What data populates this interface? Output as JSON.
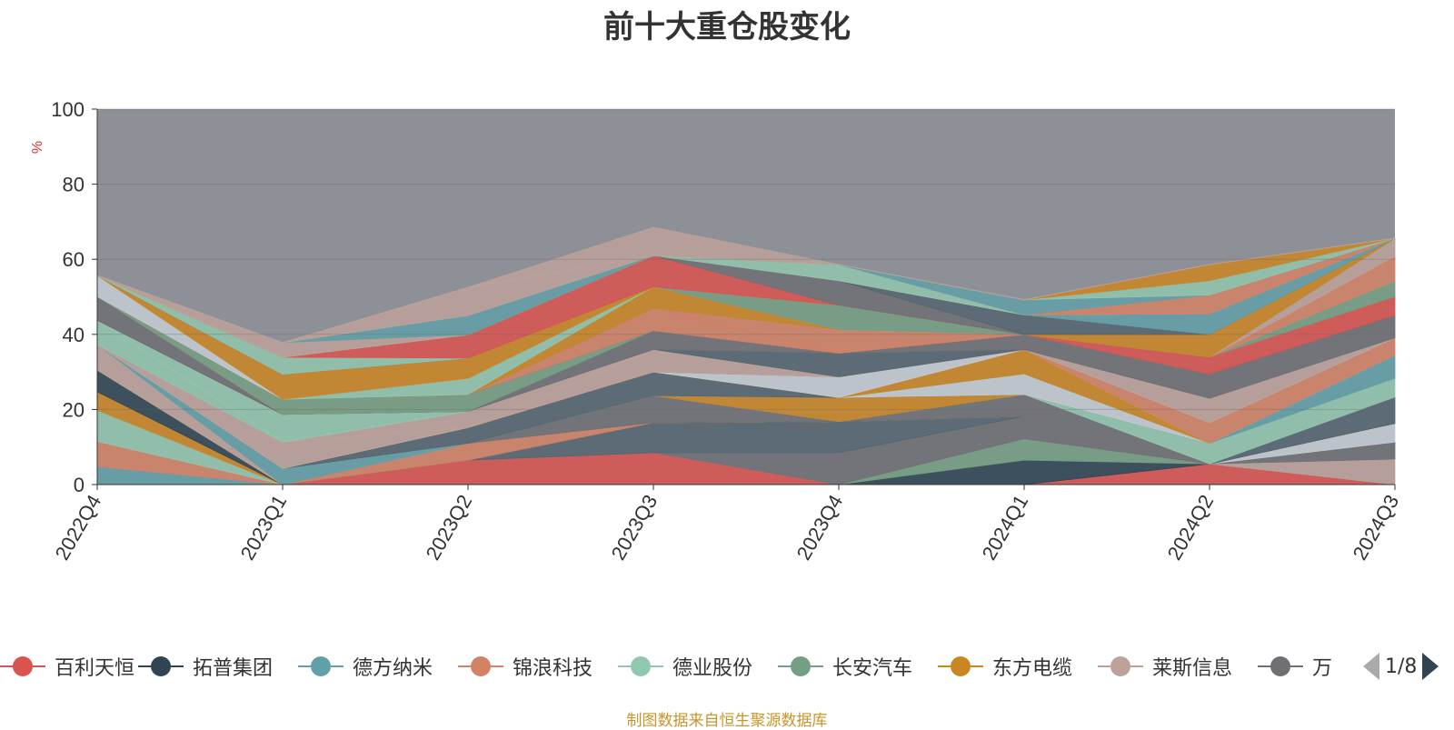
{
  "title": "前十大重仓股变化",
  "source_note": "制图数据来自恒生聚源数据库",
  "legend_pager": {
    "page_text": "1/8"
  },
  "chart_data": {
    "type": "area",
    "stacked": true,
    "ylabel": "%",
    "ylim": [
      0,
      100
    ],
    "yticks": [
      0,
      20,
      40,
      60,
      80,
      100
    ],
    "categories": [
      "2022Q4",
      "2023Q1",
      "2023Q2",
      "2023Q3",
      "2023Q4",
      "2024Q1",
      "2024Q2",
      "2024Q3"
    ],
    "grid": true,
    "legend_position": "bottom",
    "series": [
      {
        "name": "百利天恒",
        "color": "#d9534f",
        "values": [
          0,
          0,
          6.5,
          8.5,
          0,
          0,
          5.5,
          0
        ]
      },
      {
        "name": "拓普集团",
        "color": "#2f4554",
        "values": [
          0,
          0,
          0,
          0,
          0,
          6.5,
          0,
          0
        ]
      },
      {
        "name": "德方纳米",
        "color": "#61a0a8",
        "values": [
          0,
          0,
          0,
          0,
          0,
          0,
          0,
          0
        ]
      },
      {
        "name": "锦浪科技",
        "color": "#d48265",
        "values": [
          0,
          0,
          0,
          0,
          0,
          0,
          0,
          0
        ]
      },
      {
        "name": "德业股份",
        "color": "#91c7ae",
        "values": [
          0,
          0,
          0,
          0,
          0,
          0,
          0,
          0
        ]
      },
      {
        "name": "长安汽车",
        "color": "#749f83",
        "values": [
          0,
          0,
          0,
          0,
          0,
          5.7,
          0,
          0
        ]
      },
      {
        "name": "东方电缆",
        "color": "#ca8622",
        "values": [
          0,
          0,
          0,
          0,
          0,
          0,
          0,
          0
        ]
      },
      {
        "name": "莱斯信息",
        "color": "#bda29a",
        "values": [
          0,
          0,
          0,
          0,
          0,
          0,
          0,
          6.8
        ]
      },
      {
        "name": "",
        "color": "#6e7074",
        "values": [
          0,
          0,
          0,
          0,
          8.5,
          6.0,
          0,
          4.5
        ]
      },
      {
        "values": [
          0,
          0,
          0,
          8.0,
          8.3,
          0,
          0,
          0
        ],
        "color": "#546570"
      },
      {
        "values": [
          0,
          0,
          0,
          0,
          0,
          0,
          0,
          5.0
        ],
        "color": "#c4ccd3"
      },
      {
        "values": [
          4.8,
          0,
          0,
          0,
          0,
          0,
          0,
          0
        ],
        "color": "#61a0a8"
      },
      {
        "values": [
          6.7,
          0,
          0,
          0,
          0,
          0,
          0,
          0
        ],
        "color": "#d48265"
      },
      {
        "values": [
          8.3,
          0,
          0,
          0,
          0,
          0,
          0,
          0
        ],
        "color": "#91c7ae"
      },
      {
        "values": [
          4.9,
          0,
          0,
          0,
          0,
          0,
          0,
          0
        ],
        "color": "#ca8622"
      },
      {
        "values": [
          5.8,
          0,
          0,
          0,
          0,
          0,
          0,
          0
        ],
        "color": "#2f4554"
      },
      {
        "values": [
          0,
          0,
          4.5,
          0,
          0,
          0,
          0,
          0
        ],
        "color": "#d48265"
      },
      {
        "values": [
          0,
          0,
          0,
          7.2,
          0,
          5.8,
          0,
          0
        ],
        "color": "#6e7074"
      },
      {
        "values": [
          0,
          0,
          0,
          0,
          0,
          0,
          0,
          7.0
        ],
        "color": "#546570"
      },
      {
        "values": [
          0,
          0,
          0,
          0,
          0,
          0,
          5.5,
          0
        ],
        "color": "#91c7ae"
      },
      {
        "values": [
          0,
          0,
          0,
          0,
          6.4,
          0,
          0,
          0
        ],
        "color": "#ca8622"
      },
      {
        "values": [
          6.8,
          0,
          0,
          0,
          0,
          0,
          0,
          0
        ],
        "color": "#bda29a"
      },
      {
        "values": [
          0,
          4.3,
          0,
          0,
          0,
          0,
          0,
          0
        ],
        "color": "#61a0a8"
      },
      {
        "values": [
          0,
          0,
          4.2,
          6.3,
          0,
          0,
          0,
          0
        ],
        "color": "#546570"
      },
      {
        "values": [
          0,
          0,
          0,
          0,
          0,
          5.5,
          0,
          0
        ],
        "color": "#c4ccd3"
      },
      {
        "values": [
          0,
          0,
          0,
          0,
          0,
          0,
          0,
          5.0
        ],
        "color": "#91c7ae"
      },
      {
        "values": [
          0,
          0,
          0,
          0,
          0,
          0,
          0,
          6.2
        ],
        "color": "#61a0a8"
      },
      {
        "values": [
          0,
          0,
          0,
          0,
          0,
          6.5,
          0,
          0
        ],
        "color": "#ca8622"
      },
      {
        "values": [
          0,
          0,
          0,
          0,
          5.5,
          0,
          0,
          0
        ],
        "color": "#c4ccd3"
      },
      {
        "values": [
          0,
          7.0,
          0,
          0,
          0,
          0,
          0,
          0
        ],
        "color": "#bda29a"
      },
      {
        "values": [
          0,
          0,
          0,
          0,
          0,
          0,
          5.5,
          0
        ],
        "color": "#d48265"
      },
      {
        "values": [
          0,
          0,
          0,
          0,
          0,
          0,
          0,
          4.6
        ],
        "color": "#d48265"
      },
      {
        "values": [
          0,
          0,
          0,
          6.0,
          0,
          0,
          0,
          0
        ],
        "color": "#bda29a"
      },
      {
        "values": [
          0,
          0,
          4.3,
          0,
          0,
          0,
          0,
          0
        ],
        "color": "#bda29a"
      },
      {
        "values": [
          6.5,
          0,
          0,
          0,
          0,
          0,
          0,
          0
        ],
        "color": "#91c7ae"
      },
      {
        "values": [
          0,
          7.4,
          0,
          0,
          0,
          0,
          0,
          0
        ],
        "color": "#91c7ae"
      },
      {
        "values": [
          0,
          0,
          0,
          0,
          0,
          0,
          6.5,
          0
        ],
        "color": "#bda29a"
      },
      {
        "values": [
          0,
          0,
          0,
          0,
          6.3,
          0,
          0,
          0
        ],
        "color": "#546570"
      },
      {
        "values": [
          0,
          0,
          0,
          0,
          0,
          0,
          0,
          6.0
        ],
        "color": "#6e7074"
      },
      {
        "values": [
          0,
          0,
          0,
          5.0,
          0,
          0,
          0,
          0
        ],
        "color": "#6e7074"
      },
      {
        "values": [
          0,
          0,
          0,
          0,
          0,
          4.0,
          0,
          0
        ],
        "color": "#6e7074"
      },
      {
        "values": [
          0,
          0,
          4.5,
          0,
          0,
          0,
          0,
          0
        ],
        "color": "#749f83"
      },
      {
        "values": [
          0,
          0,
          0,
          0,
          0,
          0,
          6.5,
          0
        ],
        "color": "#6e7074"
      },
      {
        "values": [
          0,
          0,
          0,
          0,
          0,
          0,
          0,
          5.0
        ],
        "color": "#d9534f"
      },
      {
        "values": [
          6.3,
          0,
          0,
          0,
          0,
          0,
          0,
          0
        ],
        "color": "#6e7074"
      },
      {
        "values": [
          0,
          0,
          0,
          6.0,
          0,
          0,
          0,
          0
        ],
        "color": "#d48265"
      },
      {
        "values": [
          0,
          0,
          0,
          0,
          0,
          0,
          4.5,
          0
        ],
        "color": "#d9534f"
      },
      {
        "values": [
          0,
          0,
          0,
          0,
          6.3,
          0,
          0,
          0
        ],
        "color": "#d48265"
      },
      {
        "values": [
          0,
          4.0,
          0,
          0,
          0,
          0,
          0,
          0
        ],
        "color": "#749f83"
      },
      {
        "values": [
          0,
          0,
          0,
          0,
          0,
          0,
          0,
          4.2
        ],
        "color": "#749f83"
      },
      {
        "values": [
          0,
          0,
          0,
          5.7,
          0,
          0,
          0,
          0
        ],
        "color": "#ca8622"
      },
      {
        "values": [
          0,
          0,
          4.3,
          0,
          0,
          0,
          0,
          0
        ],
        "color": "#91c7ae"
      },
      {
        "values": [
          0,
          0,
          0,
          0,
          0,
          0,
          0,
          6.5
        ],
        "color": "#d48265"
      },
      {
        "values": [
          0,
          0,
          0,
          0,
          0,
          0,
          0,
          4.8
        ],
        "color": "#bda29a"
      },
      {
        "values": [
          0,
          0,
          0,
          0,
          6.5,
          0,
          0,
          0
        ],
        "color": "#749f83"
      },
      {
        "values": [
          0,
          0,
          0,
          0,
          0,
          0,
          6.0,
          0
        ],
        "color": "#ca8622"
      },
      {
        "values": [
          5.6,
          0,
          0,
          0,
          0,
          0,
          0,
          0
        ],
        "color": "#c4ccd3"
      },
      {
        "values": [
          0,
          6.7,
          0,
          0,
          0,
          0,
          0,
          0
        ],
        "color": "#ca8622"
      },
      {
        "values": [
          0,
          0,
          5.4,
          0,
          0,
          0,
          0,
          0
        ],
        "color": "#ca8622"
      },
      {
        "values": [
          0,
          0,
          0,
          8.3,
          0,
          0,
          0,
          0
        ],
        "color": "#d9534f"
      },
      {
        "values": [
          0,
          0,
          0,
          0,
          6.5,
          0,
          0,
          0
        ],
        "color": "#6e7074"
      },
      {
        "values": [
          0,
          0,
          0,
          0,
          0,
          5.2,
          0,
          0
        ],
        "color": "#546570"
      },
      {
        "values": [
          0,
          0,
          0,
          0,
          0,
          0,
          5.5,
          0
        ],
        "color": "#61a0a8"
      },
      {
        "values": [
          0,
          0,
          0,
          0,
          0,
          0,
          0,
          0
        ],
        "color": "#c4ccd3"
      },
      {
        "values": [
          0,
          4.5,
          0,
          0,
          0,
          0,
          0,
          0
        ],
        "color": "#91c7ae"
      },
      {
        "values": [
          0,
          0,
          6.2,
          0,
          0,
          0,
          0,
          0
        ],
        "color": "#d9534f"
      },
      {
        "values": [
          0,
          0,
          0,
          0,
          4.3,
          0,
          0,
          0
        ],
        "color": "#91c7ae"
      },
      {
        "values": [
          0,
          0,
          0,
          0,
          0,
          0,
          5.0,
          0
        ],
        "color": "#d48265"
      },
      {
        "values": [
          0,
          0,
          0,
          0,
          0,
          0,
          0,
          0
        ],
        "color": "#546570"
      },
      {
        "values": [
          0,
          0,
          0,
          0,
          0,
          4.0,
          0,
          0
        ],
        "color": "#61a0a8"
      },
      {
        "values": [
          0,
          0,
          0,
          0,
          0,
          0,
          3.8,
          0
        ],
        "color": "#91c7ae"
      },
      {
        "values": [
          0,
          0,
          0,
          0,
          0,
          0,
          4.3,
          0
        ],
        "color": "#ca8622"
      },
      {
        "values": [
          0,
          3.9,
          0,
          0,
          0,
          0,
          0,
          0
        ],
        "color": "#bda29a"
      },
      {
        "values": [
          0,
          0,
          5.1,
          0,
          0,
          0,
          0,
          0
        ],
        "color": "#61a0a8"
      },
      {
        "values": [
          0,
          0,
          0,
          0,
          0,
          0,
          0,
          0
        ],
        "color": "#749f83"
      },
      {
        "values": [
          0,
          0,
          0,
          0,
          0,
          0,
          0,
          0
        ],
        "color": "#2f4554"
      },
      {
        "values": [
          0,
          0,
          0,
          0,
          0,
          0,
          0,
          0
        ],
        "color": "#c4ccd3"
      },
      {
        "values": [
          0,
          0,
          7.5,
          0,
          0,
          0,
          0,
          0
        ],
        "color": "#bda29a"
      },
      {
        "values": [
          0,
          0,
          0,
          7.5,
          0,
          0,
          0,
          0
        ],
        "color": "#bda29a"
      },
      {
        "values": [
          0,
          0,
          0,
          0,
          0,
          0,
          0,
          0
        ],
        "color": "#91c7ae"
      }
    ],
    "remainder_color": "#8e9097"
  },
  "legend_items": [
    {
      "label": "百利天恒",
      "color": "#d9534f"
    },
    {
      "label": "拓普集团",
      "color": "#2f4554"
    },
    {
      "label": "德方纳米",
      "color": "#61a0a8"
    },
    {
      "label": "锦浪科技",
      "color": "#d48265"
    },
    {
      "label": "德业股份",
      "color": "#91c7ae"
    },
    {
      "label": "长安汽车",
      "color": "#749f83"
    },
    {
      "label": "东方电缆",
      "color": "#ca8622"
    },
    {
      "label": "莱斯信息",
      "color": "#bda29a"
    },
    {
      "label": "万",
      "color": "#6e7074"
    }
  ]
}
